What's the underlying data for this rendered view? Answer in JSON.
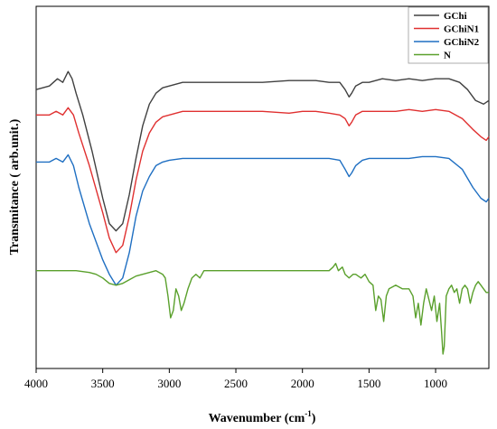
{
  "chart_data": {
    "type": "line",
    "title": "",
    "xlabel": "Wavenumber (cm",
    "xlabel_sup": "-1",
    "xlabel_close": ")",
    "ylabel": "Transmitance ( arb.unit.)",
    "xlim": [
      4000,
      600
    ],
    "x_reversed": true,
    "ylim": [
      0,
      100
    ],
    "y_ticks_labeled": false,
    "grid": false,
    "legend_position": "top-right",
    "x_ticks": [
      4000,
      3500,
      3000,
      2500,
      2000,
      1500,
      1000
    ],
    "x_tick_labels": [
      "4000",
      "3500",
      "3000",
      "2500",
      "2000",
      "1500",
      "1000"
    ],
    "series": [
      {
        "name": "GChi",
        "color": "#404040",
        "points": [
          [
            4000,
            77
          ],
          [
            3900,
            78
          ],
          [
            3840,
            80
          ],
          [
            3800,
            79
          ],
          [
            3760,
            82
          ],
          [
            3730,
            80
          ],
          [
            3700,
            76
          ],
          [
            3650,
            70
          ],
          [
            3580,
            60
          ],
          [
            3500,
            47
          ],
          [
            3450,
            40
          ],
          [
            3400,
            38
          ],
          [
            3350,
            40
          ],
          [
            3300,
            48
          ],
          [
            3250,
            58
          ],
          [
            3200,
            67
          ],
          [
            3150,
            73
          ],
          [
            3100,
            76
          ],
          [
            3050,
            77.5
          ],
          [
            3000,
            78
          ],
          [
            2900,
            79
          ],
          [
            2800,
            79
          ],
          [
            2500,
            79
          ],
          [
            2300,
            79
          ],
          [
            2100,
            79.5
          ],
          [
            2000,
            79.5
          ],
          [
            1900,
            79.5
          ],
          [
            1800,
            79
          ],
          [
            1720,
            79
          ],
          [
            1680,
            77
          ],
          [
            1650,
            75
          ],
          [
            1630,
            76
          ],
          [
            1600,
            78
          ],
          [
            1550,
            79
          ],
          [
            1500,
            79
          ],
          [
            1400,
            80
          ],
          [
            1300,
            79.5
          ],
          [
            1200,
            80
          ],
          [
            1100,
            79.5
          ],
          [
            1000,
            80
          ],
          [
            900,
            80
          ],
          [
            820,
            79
          ],
          [
            760,
            77
          ],
          [
            700,
            74
          ],
          [
            640,
            73
          ],
          [
            600,
            74
          ]
        ]
      },
      {
        "name": "GChiN1",
        "color": "#e03030",
        "points": [
          [
            4000,
            70
          ],
          [
            3900,
            70
          ],
          [
            3850,
            71
          ],
          [
            3800,
            70
          ],
          [
            3760,
            72
          ],
          [
            3720,
            70
          ],
          [
            3680,
            65
          ],
          [
            3600,
            56
          ],
          [
            3500,
            43
          ],
          [
            3450,
            36
          ],
          [
            3400,
            32
          ],
          [
            3350,
            34
          ],
          [
            3300,
            42
          ],
          [
            3250,
            52
          ],
          [
            3200,
            60
          ],
          [
            3150,
            65
          ],
          [
            3100,
            68
          ],
          [
            3050,
            69.5
          ],
          [
            3000,
            70
          ],
          [
            2900,
            71
          ],
          [
            2800,
            71
          ],
          [
            2500,
            71
          ],
          [
            2300,
            71
          ],
          [
            2100,
            70.5
          ],
          [
            2000,
            71
          ],
          [
            1900,
            71
          ],
          [
            1800,
            70.5
          ],
          [
            1720,
            70
          ],
          [
            1680,
            69
          ],
          [
            1650,
            67
          ],
          [
            1630,
            68
          ],
          [
            1600,
            70
          ],
          [
            1550,
            71
          ],
          [
            1500,
            71
          ],
          [
            1400,
            71
          ],
          [
            1300,
            71
          ],
          [
            1200,
            71.5
          ],
          [
            1100,
            71
          ],
          [
            1000,
            71.5
          ],
          [
            900,
            71
          ],
          [
            800,
            69
          ],
          [
            720,
            66
          ],
          [
            660,
            64
          ],
          [
            620,
            63
          ],
          [
            600,
            64
          ]
        ]
      },
      {
        "name": "GChiN2",
        "color": "#1f6fc2",
        "points": [
          [
            4000,
            57
          ],
          [
            3900,
            57
          ],
          [
            3850,
            58
          ],
          [
            3800,
            57
          ],
          [
            3760,
            59
          ],
          [
            3720,
            56
          ],
          [
            3680,
            50
          ],
          [
            3600,
            40
          ],
          [
            3500,
            30
          ],
          [
            3450,
            26
          ],
          [
            3400,
            23
          ],
          [
            3350,
            25
          ],
          [
            3300,
            32
          ],
          [
            3250,
            42
          ],
          [
            3200,
            49
          ],
          [
            3150,
            53
          ],
          [
            3100,
            56
          ],
          [
            3050,
            57
          ],
          [
            3000,
            57.5
          ],
          [
            2900,
            58
          ],
          [
            2800,
            58
          ],
          [
            2500,
            58
          ],
          [
            2300,
            58
          ],
          [
            2100,
            58
          ],
          [
            2000,
            58
          ],
          [
            1900,
            58
          ],
          [
            1800,
            58
          ],
          [
            1720,
            57.5
          ],
          [
            1680,
            55
          ],
          [
            1650,
            53
          ],
          [
            1630,
            54
          ],
          [
            1600,
            56
          ],
          [
            1550,
            57.5
          ],
          [
            1500,
            58
          ],
          [
            1400,
            58
          ],
          [
            1300,
            58
          ],
          [
            1200,
            58
          ],
          [
            1100,
            58.5
          ],
          [
            1000,
            58.5
          ],
          [
            900,
            58
          ],
          [
            800,
            55
          ],
          [
            720,
            50
          ],
          [
            660,
            47
          ],
          [
            620,
            46
          ],
          [
            600,
            47
          ]
        ]
      },
      {
        "name": "N",
        "color": "#5aa02c",
        "points": [
          [
            4000,
            27
          ],
          [
            3900,
            27
          ],
          [
            3800,
            27
          ],
          [
            3700,
            27
          ],
          [
            3600,
            26.5
          ],
          [
            3550,
            26
          ],
          [
            3500,
            25
          ],
          [
            3450,
            23.5
          ],
          [
            3400,
            23
          ],
          [
            3350,
            23.5
          ],
          [
            3300,
            24.5
          ],
          [
            3250,
            25.5
          ],
          [
            3200,
            26
          ],
          [
            3150,
            26.5
          ],
          [
            3100,
            27
          ],
          [
            3050,
            26
          ],
          [
            3030,
            25
          ],
          [
            3010,
            20
          ],
          [
            2990,
            14
          ],
          [
            2970,
            16
          ],
          [
            2950,
            22
          ],
          [
            2930,
            20
          ],
          [
            2910,
            16
          ],
          [
            2890,
            18
          ],
          [
            2860,
            22
          ],
          [
            2830,
            25
          ],
          [
            2800,
            26
          ],
          [
            2770,
            25
          ],
          [
            2740,
            27
          ],
          [
            2600,
            27
          ],
          [
            2400,
            27
          ],
          [
            2200,
            27
          ],
          [
            2000,
            27
          ],
          [
            1900,
            27
          ],
          [
            1800,
            27
          ],
          [
            1770,
            28
          ],
          [
            1750,
            29
          ],
          [
            1730,
            27
          ],
          [
            1700,
            28
          ],
          [
            1680,
            26
          ],
          [
            1650,
            25
          ],
          [
            1620,
            26
          ],
          [
            1600,
            26
          ],
          [
            1560,
            25
          ],
          [
            1530,
            26
          ],
          [
            1500,
            24
          ],
          [
            1470,
            23
          ],
          [
            1450,
            16
          ],
          [
            1430,
            20
          ],
          [
            1410,
            19
          ],
          [
            1390,
            13
          ],
          [
            1370,
            20
          ],
          [
            1350,
            22
          ],
          [
            1300,
            23
          ],
          [
            1250,
            22
          ],
          [
            1200,
            22
          ],
          [
            1170,
            20
          ],
          [
            1150,
            14
          ],
          [
            1130,
            18
          ],
          [
            1110,
            12
          ],
          [
            1090,
            18
          ],
          [
            1070,
            22
          ],
          [
            1050,
            19
          ],
          [
            1030,
            16
          ],
          [
            1010,
            20
          ],
          [
            990,
            13
          ],
          [
            970,
            18
          ],
          [
            955,
            10
          ],
          [
            945,
            4
          ],
          [
            935,
            6
          ],
          [
            920,
            20
          ],
          [
            900,
            22
          ],
          [
            880,
            23
          ],
          [
            860,
            21
          ],
          [
            840,
            22
          ],
          [
            820,
            18
          ],
          [
            800,
            22
          ],
          [
            780,
            23
          ],
          [
            760,
            22
          ],
          [
            740,
            18
          ],
          [
            720,
            21
          ],
          [
            700,
            23
          ],
          [
            680,
            24
          ],
          [
            660,
            23
          ],
          [
            640,
            22
          ],
          [
            620,
            21
          ],
          [
            600,
            21
          ]
        ]
      }
    ]
  }
}
